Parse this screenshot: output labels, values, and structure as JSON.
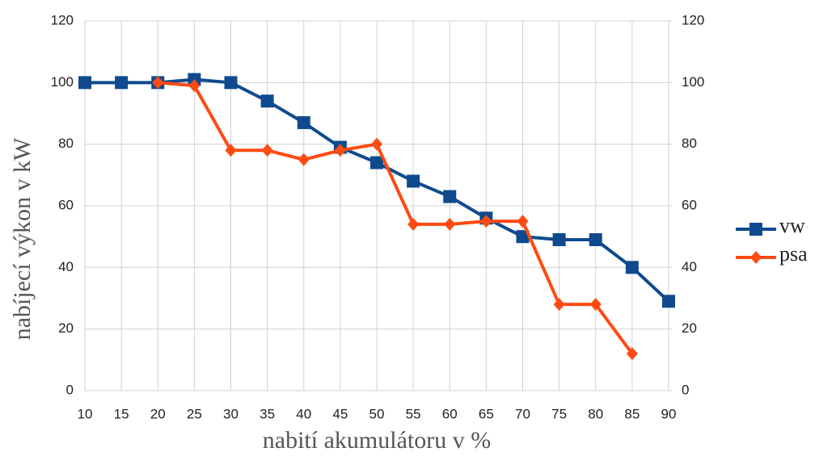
{
  "chart_data": {
    "type": "line",
    "x_label": "nabití akumulátoru v %",
    "y_label": "nabíjecí výkon v kW",
    "x": [
      10,
      15,
      20,
      25,
      30,
      35,
      40,
      45,
      50,
      55,
      60,
      65,
      70,
      75,
      80,
      85,
      90
    ],
    "series": [
      {
        "name": "vw",
        "color": "#0f4a8e",
        "marker": "square",
        "values": [
          100,
          100,
          100,
          101,
          100,
          94,
          87,
          79,
          74,
          68,
          63,
          56,
          50,
          49,
          49,
          40,
          29
        ]
      },
      {
        "name": "psa",
        "color": "#ff4a12",
        "marker": "diamond",
        "values": [
          null,
          null,
          100,
          99,
          78,
          78,
          75,
          78,
          80,
          54,
          54,
          55,
          55,
          28,
          28,
          12,
          null
        ]
      }
    ],
    "xlim": [
      10,
      90
    ],
    "xticks": [
      10,
      15,
      20,
      25,
      30,
      35,
      40,
      45,
      50,
      55,
      60,
      65,
      70,
      75,
      80,
      85,
      90
    ],
    "ylim": [
      0,
      120
    ],
    "yticks": [
      0,
      20,
      40,
      60,
      80,
      100,
      120
    ],
    "y2lim": [
      0,
      120
    ],
    "y2ticks": [
      0,
      20,
      40,
      60,
      80,
      100,
      120
    ],
    "grid": true,
    "legend": "right"
  }
}
